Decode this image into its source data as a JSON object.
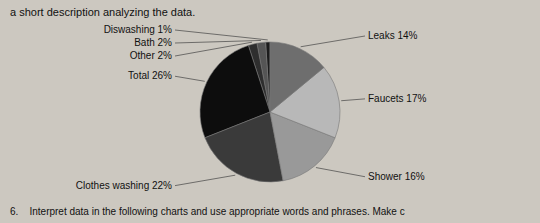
{
  "chart_data": {
    "type": "pie",
    "title": "a short description analyzing the data.",
    "annotations": [
      "6.    Interpret data in the following charts and use appropriate words and phrases. Make c"
    ],
    "categories": [
      "Diswashing",
      "Bath",
      "Other",
      "Total",
      "Clothes washing",
      "Shower",
      "Faucets",
      "Leaks"
    ],
    "values": [
      1,
      2,
      2,
      26,
      22,
      16,
      17,
      14
    ],
    "value_labels": [
      "1%",
      "2%",
      "2%",
      "26%",
      "22%",
      "16%",
      "17%",
      "14%"
    ],
    "colors": [
      "#1c1c1c",
      "#555555",
      "#2e2e2e",
      "#0d0d0d",
      "#3a3a3a",
      "#999999",
      "#b8b8b8",
      "#6e6e6e"
    ],
    "data_labels": true
  }
}
